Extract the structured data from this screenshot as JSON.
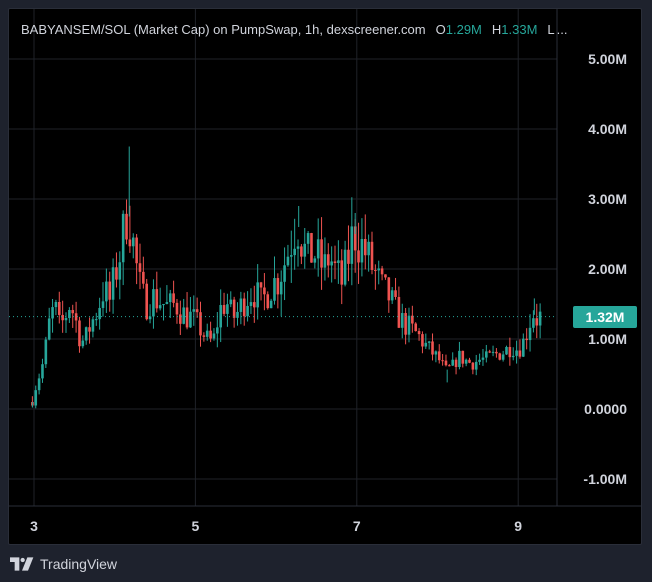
{
  "legend": {
    "title": "BABYANSEM/SOL (Market Cap) on PumpSwap, 1h, dexscreener.com",
    "open_key": "O",
    "open_value": "1.29M",
    "high_key": "H",
    "high_value": "1.33M",
    "low_key": "L",
    "ellipsis": "..."
  },
  "footer": {
    "brand": "TradingView",
    "logo_icon": "tradingview-logo-icon"
  },
  "colors": {
    "up": "#26a69a",
    "down": "#ef5350",
    "background": "#000000",
    "grid": "#1f2229",
    "text": "#d1d4dc",
    "last_price": "#26a69a"
  },
  "chart_data": {
    "type": "candlestick",
    "title": "BABYANSEM/SOL (Market Cap) on PumpSwap, 1h, dexscreener.com",
    "interval": "1h",
    "ylim": [
      -1500000,
      5500000
    ],
    "y_ticks": [
      5000000,
      4000000,
      3000000,
      2000000,
      1000000,
      0,
      -1000000
    ],
    "y_tick_labels": [
      "5.00M",
      "4.00M",
      "3.00M",
      "2.00M",
      "1.00M",
      "0.0000",
      "-1.00M"
    ],
    "x_ticks": [
      3,
      5,
      7,
      9
    ],
    "x_tick_labels": [
      "3",
      "5",
      "7",
      "9"
    ],
    "xlim": [
      2.78,
      9.78
    ],
    "last_value": 1320000,
    "last_value_label": "1.32M",
    "grid": true,
    "close_points": [
      [
        2.98,
        0.1
      ],
      [
        3.02,
        0.3
      ],
      [
        3.06,
        0.45
      ],
      [
        3.1,
        0.6
      ],
      [
        3.14,
        0.85
      ],
      [
        3.2,
        1.3
      ],
      [
        3.26,
        1.45
      ],
      [
        3.32,
        1.15
      ],
      [
        3.38,
        1.3
      ],
      [
        3.44,
        1.5
      ],
      [
        3.5,
        1.35
      ],
      [
        3.56,
        1.05
      ],
      [
        3.62,
        0.95
      ],
      [
        3.7,
        1.2
      ],
      [
        3.78,
        1.4
      ],
      [
        3.86,
        1.7
      ],
      [
        3.94,
        1.55
      ],
      [
        4.02,
        2.0
      ],
      [
        4.08,
        2.3
      ],
      [
        4.12,
        2.6
      ],
      [
        4.16,
        2.9
      ],
      [
        4.2,
        2.6
      ],
      [
        4.26,
        2.1
      ],
      [
        4.32,
        1.7
      ],
      [
        4.38,
        1.5
      ],
      [
        4.46,
        1.6
      ],
      [
        4.56,
        1.55
      ],
      [
        4.66,
        1.45
      ],
      [
        4.76,
        1.5
      ],
      [
        4.86,
        1.35
      ],
      [
        4.96,
        1.3
      ],
      [
        5.06,
        1.15
      ],
      [
        5.14,
        1.0
      ],
      [
        5.22,
        0.95
      ],
      [
        5.3,
        1.4
      ],
      [
        5.38,
        1.55
      ],
      [
        5.46,
        1.3
      ],
      [
        5.54,
        1.4
      ],
      [
        5.62,
        1.6
      ],
      [
        5.72,
        1.7
      ],
      [
        5.82,
        1.5
      ],
      [
        5.92,
        1.75
      ],
      [
        6.02,
        1.85
      ],
      [
        6.12,
        2.15
      ],
      [
        6.2,
        2.45
      ],
      [
        6.26,
        2.7
      ],
      [
        6.32,
        2.4
      ],
      [
        6.38,
        2.15
      ],
      [
        6.46,
        2.25
      ],
      [
        6.54,
        2.1
      ],
      [
        6.6,
        2.0
      ],
      [
        6.66,
        2.2
      ],
      [
        6.74,
        1.95
      ],
      [
        6.82,
        1.8
      ],
      [
        6.9,
        2.2
      ],
      [
        6.96,
        2.55
      ],
      [
        7.02,
        2.4
      ],
      [
        7.08,
        2.3
      ],
      [
        7.16,
        2.1
      ],
      [
        7.24,
        1.9
      ],
      [
        7.32,
        1.7
      ],
      [
        7.4,
        1.6
      ],
      [
        7.48,
        1.4
      ],
      [
        7.56,
        1.25
      ],
      [
        7.66,
        1.15
      ],
      [
        7.76,
        1.05
      ],
      [
        7.86,
        0.9
      ],
      [
        7.94,
        0.8
      ],
      [
        8.02,
        0.7
      ],
      [
        8.1,
        0.55
      ],
      [
        8.18,
        0.6
      ],
      [
        8.26,
        0.75
      ],
      [
        8.34,
        0.7
      ],
      [
        8.42,
        0.65
      ],
      [
        8.52,
        0.7
      ],
      [
        8.62,
        0.72
      ],
      [
        8.72,
        0.78
      ],
      [
        8.82,
        0.82
      ],
      [
        8.92,
        0.9
      ],
      [
        9.0,
        0.85
      ],
      [
        9.06,
        0.95
      ],
      [
        9.12,
        1.15
      ],
      [
        9.18,
        1.4
      ],
      [
        9.22,
        1.29
      ],
      [
        9.28,
        1.32
      ]
    ],
    "notable_highs": [
      [
        4.18,
        3.75
      ],
      [
        6.28,
        2.9
      ],
      [
        6.98,
        2.8
      ],
      [
        9.2,
        1.58
      ]
    ],
    "notable_lows": [
      [
        2.98,
        0.02
      ],
      [
        8.12,
        0.38
      ]
    ]
  }
}
